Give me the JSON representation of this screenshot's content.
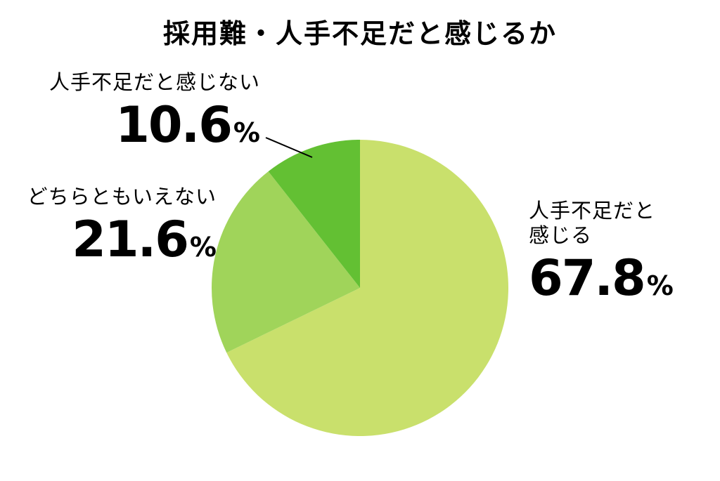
{
  "header": {
    "title": "採用難・人手不足だと感じるか"
  },
  "chart_data": {
    "type": "pie",
    "title": "採用難・人手不足だと感じるか",
    "unit": "%",
    "start_angle_deg": 0,
    "direction": "clockwise",
    "legend_position": "none",
    "background_color": "#ffffff",
    "text_color": "#000000",
    "segments": [
      {
        "id": "feel-shortage",
        "label": "人手不足だと感じる",
        "value": 67.8,
        "color": "#c9e06c"
      },
      {
        "id": "neutral",
        "label": "どちらともいえない",
        "value": 21.6,
        "color": "#a0d45a"
      },
      {
        "id": "no-feel-shortage",
        "label": "人手不足だと感じない",
        "value": 10.6,
        "color": "#63c033"
      }
    ]
  },
  "labels": {
    "feel": {
      "line1": "人手不足だと",
      "line2": "感じる",
      "value": "67.8",
      "unit": "%"
    },
    "neutral": {
      "text": "どちらともいえない",
      "value": "21.6",
      "unit": "%"
    },
    "no_feel": {
      "text": "人手不足だと感じない",
      "value": "10.6",
      "unit": "%"
    }
  }
}
